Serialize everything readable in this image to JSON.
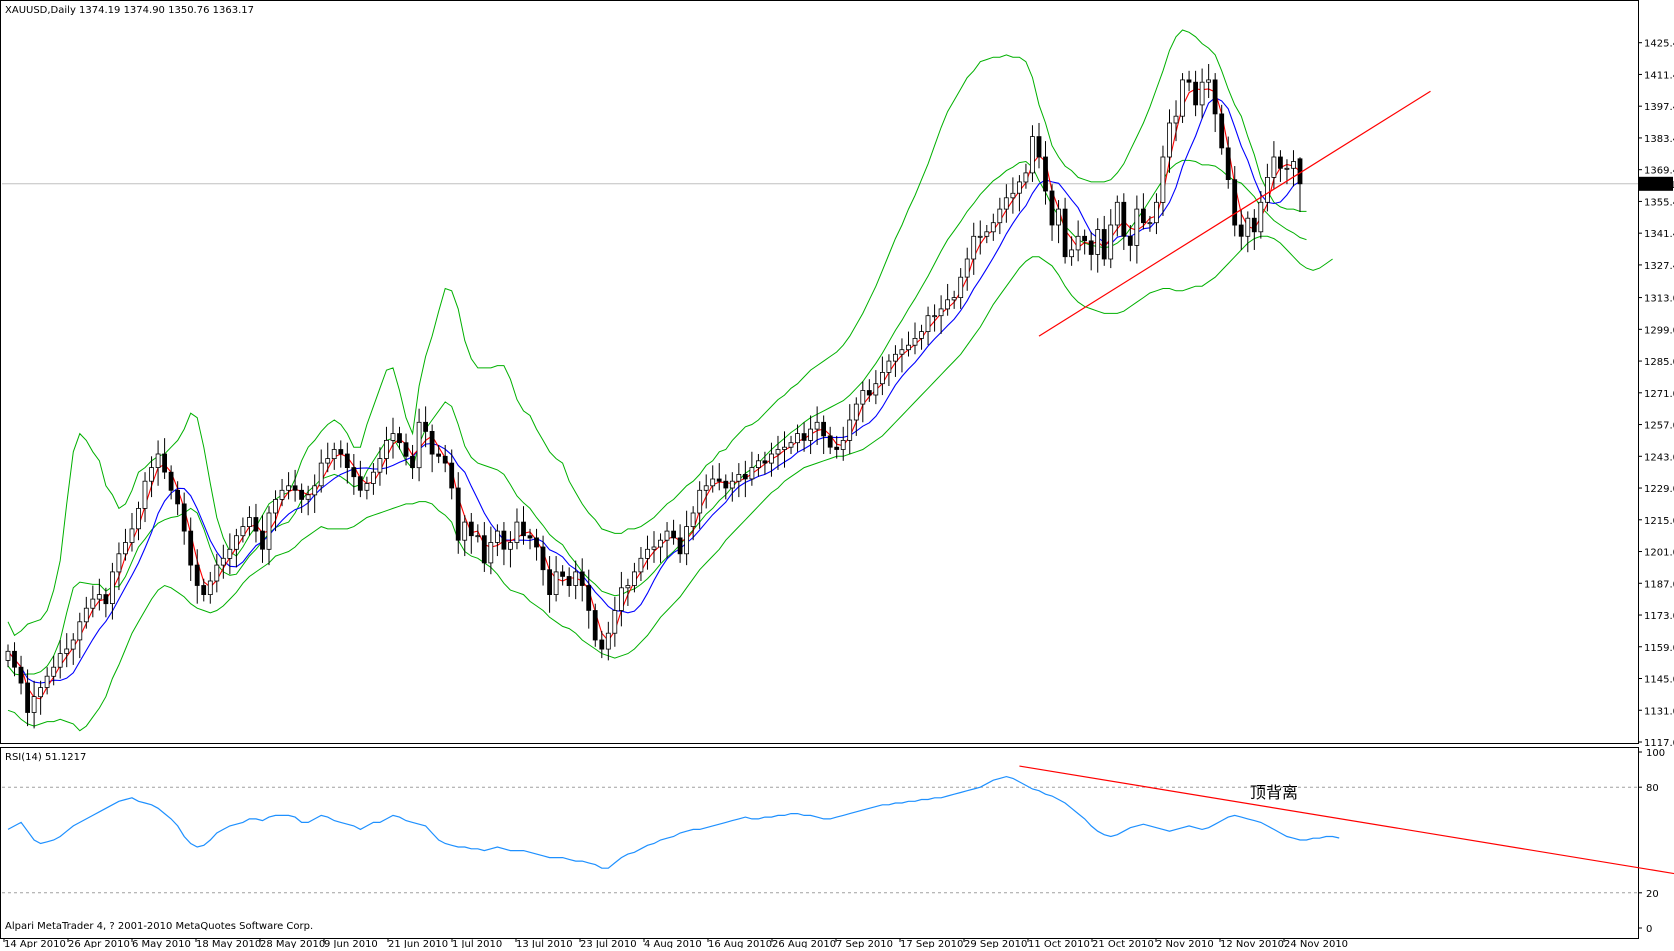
{
  "header": {
    "symbol_line": "XAUUSD,Daily  1374.19 1374.90 1350.76 1363.17"
  },
  "rsi_header": "RSI(14) 51.1217",
  "copyright": "Alpari MetaTrader 4, ? 2001-2010 MetaQuotes Software Corp.",
  "annotation_text": "顶背离",
  "colors": {
    "bull_body": "#ffffff",
    "bear_body": "#000000",
    "wick": "#000000",
    "bollinger": "#00b000",
    "ma_fast": "#ff0000",
    "ma_slow": "#0000ff",
    "trendline": "#ff0000",
    "rsi_line": "#1e90ff",
    "grid_hline": "#c0c0c0",
    "price_marker_bg": "#000000",
    "price_marker_text": "#ffffff",
    "annotation": "#ff0000"
  },
  "chart_data": [
    {
      "type": "candlestick",
      "symbol": "XAUUSD",
      "timeframe": "Daily",
      "ohlc_last": {
        "open": 1374.19,
        "high": 1374.9,
        "low": 1350.76,
        "close": 1363.17
      },
      "current_price": 1363.17,
      "current_price_label": "1363.17",
      "ylim": [
        1117,
        1431
      ],
      "y_ticks": [
        "1425.40",
        "1411.40",
        "1397.40",
        "1383.40",
        "1369.40",
        "1355.40",
        "1341.40",
        "1327.40",
        "1313.00",
        "1299.00",
        "1285.00",
        "1271.00",
        "1257.00",
        "1243.00",
        "1229.00",
        "1215.00",
        "1201.00",
        "1187.00",
        "1173.00",
        "1159.00",
        "1145.00",
        "1131.00",
        "1117.00"
      ],
      "x_ticks": [
        "14 Apr 2010",
        "26 Apr 2010",
        "6 May 2010",
        "18 May 2010",
        "28 May 2010",
        "9 Jun 2010",
        "21 Jun 2010",
        "1 Jul 2010",
        "13 Jul 2010",
        "23 Jul 2010",
        "4 Aug 2010",
        "16 Aug 2010",
        "26 Aug 2010",
        "7 Sep 2010",
        "17 Sep 2010",
        "29 Sep 2010",
        "11 Oct 2010",
        "21 Oct 2010",
        "2 Nov 2010",
        "12 Nov 2010",
        "24 Nov 2010"
      ],
      "closes": [
        1157,
        1150,
        1143,
        1130,
        1137,
        1141,
        1146,
        1150,
        1156,
        1158,
        1162,
        1170,
        1176,
        1180,
        1182,
        1178,
        1192,
        1200,
        1205,
        1211,
        1220,
        1232,
        1238,
        1244,
        1236,
        1228,
        1222,
        1210,
        1195,
        1186,
        1182,
        1188,
        1195,
        1198,
        1202,
        1208,
        1212,
        1216,
        1210,
        1202,
        1218,
        1224,
        1228,
        1230,
        1228,
        1224,
        1226,
        1230,
        1240,
        1242,
        1246,
        1244,
        1238,
        1234,
        1228,
        1231,
        1236,
        1242,
        1250,
        1253,
        1249,
        1243,
        1238,
        1258,
        1254,
        1244,
        1243,
        1240,
        1229,
        1206,
        1214,
        1208,
        1208,
        1196,
        1205,
        1210,
        1202,
        1205,
        1214,
        1208,
        1207,
        1203,
        1193,
        1182,
        1192,
        1190,
        1186,
        1192,
        1186,
        1175,
        1162,
        1158,
        1165,
        1175,
        1185,
        1186,
        1192,
        1198,
        1202,
        1203,
        1206,
        1210,
        1207,
        1200,
        1212,
        1218,
        1228,
        1230,
        1233,
        1232,
        1229,
        1232,
        1235,
        1233,
        1238,
        1241,
        1240,
        1244,
        1246,
        1247,
        1249,
        1253,
        1250,
        1255,
        1258,
        1252,
        1247,
        1246,
        1250,
        1259,
        1266,
        1272,
        1270,
        1275,
        1280,
        1285,
        1288,
        1290,
        1292,
        1295,
        1298,
        1305,
        1305,
        1308,
        1312,
        1313,
        1322,
        1330,
        1340,
        1340,
        1342,
        1346,
        1352,
        1357,
        1359,
        1364,
        1368,
        1384,
        1375,
        1360,
        1345,
        1352,
        1331,
        1334,
        1340,
        1338,
        1332,
        1343,
        1330,
        1345,
        1355,
        1340,
        1336,
        1352,
        1346,
        1346,
        1355,
        1375,
        1390,
        1393,
        1409,
        1408,
        1398,
        1408,
        1409,
        1394,
        1379,
        1365,
        1345,
        1340,
        1348,
        1342,
        1355,
        1366,
        1375,
        1370,
        1370,
        1373,
        1363.17
      ],
      "channel_upper": [
        1170,
        1164,
        1166,
        1169,
        1170,
        1171,
        1175,
        1184,
        1197,
        1222,
        1245,
        1253,
        1250,
        1245,
        1241,
        1230,
        1226,
        1220,
        1222,
        1228,
        1236,
        1238,
        1241,
        1243,
        1244,
        1247,
        1250,
        1255,
        1262,
        1260,
        1247,
        1231,
        1216,
        1207,
        1201,
        1199,
        1203,
        1208,
        1212,
        1217,
        1222,
        1224,
        1226,
        1227,
        1233,
        1241,
        1247,
        1250,
        1254,
        1257,
        1259,
        1257,
        1253,
        1247,
        1247,
        1257,
        1265,
        1273,
        1281,
        1282,
        1272,
        1260,
        1253,
        1274,
        1287,
        1296,
        1307,
        1317,
        1316,
        1308,
        1294,
        1286,
        1282,
        1282,
        1282,
        1283,
        1283,
        1277,
        1268,
        1263,
        1261,
        1255,
        1250,
        1245,
        1242,
        1240,
        1232,
        1227,
        1222,
        1218,
        1215,
        1211,
        1210,
        1209,
        1209,
        1211,
        1211,
        1212,
        1214,
        1216,
        1219,
        1222,
        1224,
        1227,
        1230,
        1232,
        1235,
        1239,
        1241,
        1245,
        1246,
        1250,
        1253,
        1256,
        1257,
        1259,
        1262,
        1265,
        1268,
        1270,
        1273,
        1275,
        1278,
        1281,
        1283,
        1285,
        1287,
        1289,
        1292,
        1296,
        1301,
        1306,
        1312,
        1318,
        1325,
        1332,
        1339,
        1345,
        1352,
        1358,
        1365,
        1372,
        1380,
        1388,
        1395,
        1400,
        1405,
        1410,
        1413,
        1417,
        1418,
        1419,
        1419,
        1420,
        1419,
        1419,
        1417,
        1410,
        1398,
        1390,
        1380,
        1375,
        1371,
        1369,
        1366,
        1365,
        1364,
        1364,
        1364,
        1365,
        1368,
        1372,
        1378,
        1384,
        1390,
        1397,
        1405,
        1413,
        1422,
        1428,
        1431,
        1430,
        1428,
        1425,
        1423,
        1420,
        1413,
        1405,
        1398,
        1393,
        1384,
        1376,
        1366,
        1360,
        1355,
        1353,
        1352,
        1352,
        1351,
        1351
      ],
      "channel_lower": [
        1131,
        1130,
        1127,
        1125,
        1124,
        1125,
        1126,
        1126,
        1127,
        1126,
        1125,
        1122,
        1124,
        1128,
        1132,
        1137,
        1145,
        1151,
        1158,
        1165,
        1170,
        1175,
        1180,
        1184,
        1186,
        1185,
        1183,
        1181,
        1178,
        1176,
        1175,
        1174,
        1175,
        1177,
        1180,
        1183,
        1187,
        1190,
        1192,
        1194,
        1196,
        1199,
        1200,
        1201,
        1203,
        1206,
        1208,
        1210,
        1212,
        1211,
        1211,
        1211,
        1211,
        1212,
        1214,
        1216,
        1217,
        1218,
        1219,
        1220,
        1221,
        1222,
        1222,
        1223,
        1223,
        1222,
        1219,
        1217,
        1214,
        1206,
        1201,
        1199,
        1198,
        1196,
        1194,
        1191,
        1187,
        1184,
        1183,
        1182,
        1179,
        1177,
        1175,
        1172,
        1170,
        1168,
        1167,
        1165,
        1162,
        1160,
        1158,
        1156,
        1155,
        1154,
        1155,
        1156,
        1158,
        1161,
        1164,
        1168,
        1172,
        1175,
        1178,
        1181,
        1185,
        1189,
        1193,
        1196,
        1199,
        1202,
        1206,
        1209,
        1212,
        1215,
        1218,
        1221,
        1224,
        1227,
        1229,
        1232,
        1234,
        1236,
        1238,
        1239,
        1240,
        1241,
        1242,
        1243,
        1243,
        1244,
        1245,
        1246,
        1248,
        1250,
        1252,
        1255,
        1258,
        1261,
        1264,
        1267,
        1270,
        1273,
        1276,
        1279,
        1282,
        1285,
        1288,
        1292,
        1296,
        1300,
        1305,
        1310,
        1314,
        1318,
        1322,
        1326,
        1329,
        1331,
        1331,
        1329,
        1327,
        1323,
        1318,
        1314,
        1311,
        1309,
        1308,
        1307,
        1306,
        1306,
        1306,
        1307,
        1309,
        1311,
        1313,
        1315,
        1316,
        1317,
        1317,
        1316,
        1316,
        1317,
        1318,
        1318,
        1320,
        1322,
        1325,
        1328,
        1331,
        1334,
        1337,
        1339,
        1340,
        1340,
        1339,
        1337,
        1334,
        1331,
        1328,
        1326,
        1325,
        1326,
        1328,
        1330
      ],
      "trendline_price": [
        [
          158,
          1296
        ],
        [
          218,
          1404
        ]
      ],
      "trendline_label": "顶背离"
    },
    {
      "type": "line",
      "indicator": "RSI(14)",
      "last_value": 51.1217,
      "ylim": [
        0,
        100
      ],
      "y_ticks": [
        "100",
        "80",
        "20",
        "0"
      ],
      "levels": [
        80,
        20
      ],
      "values": [
        56,
        58,
        60,
        55,
        50,
        48,
        49,
        50,
        52,
        55,
        58,
        60,
        62,
        64,
        66,
        68,
        70,
        72,
        73,
        74,
        72,
        71,
        70,
        68,
        65,
        62,
        58,
        52,
        48,
        46,
        47,
        50,
        54,
        56,
        58,
        59,
        60,
        62,
        62,
        61,
        63,
        64,
        64,
        64,
        63,
        60,
        60,
        62,
        64,
        63,
        61,
        60,
        59,
        58,
        56,
        58,
        60,
        60,
        62,
        64,
        63,
        61,
        60,
        59,
        58,
        54,
        50,
        48,
        47,
        46,
        46,
        45,
        45,
        44,
        45,
        46,
        45,
        44,
        44,
        44,
        43,
        42,
        41,
        40,
        40,
        40,
        39,
        38,
        38,
        37,
        36,
        34,
        34,
        37,
        40,
        42,
        43,
        45,
        47,
        48,
        50,
        51,
        52,
        54,
        55,
        56,
        56,
        57,
        58,
        59,
        60,
        61,
        62,
        63,
        62,
        62,
        63,
        63,
        64,
        64,
        65,
        65,
        64,
        64,
        63,
        62,
        62,
        63,
        64,
        65,
        66,
        67,
        68,
        69,
        70,
        70,
        71,
        71,
        72,
        72,
        73,
        73,
        74,
        74,
        75,
        76,
        77,
        78,
        79,
        80,
        82,
        84,
        85,
        86,
        85,
        83,
        81,
        79,
        78,
        76,
        75,
        73,
        71,
        68,
        65,
        62,
        58,
        55,
        53,
        52,
        53,
        55,
        57,
        58,
        59,
        58,
        57,
        56,
        55,
        56,
        57,
        58,
        57,
        56,
        57,
        59,
        61,
        63,
        64,
        63,
        62,
        61,
        60,
        58,
        56,
        54,
        52,
        51,
        50,
        50,
        51,
        51,
        52,
        52,
        51.12
      ],
      "divergence_line": {
        "x": [
          155,
          270
        ],
        "y": [
          92,
          22
        ]
      }
    }
  ]
}
